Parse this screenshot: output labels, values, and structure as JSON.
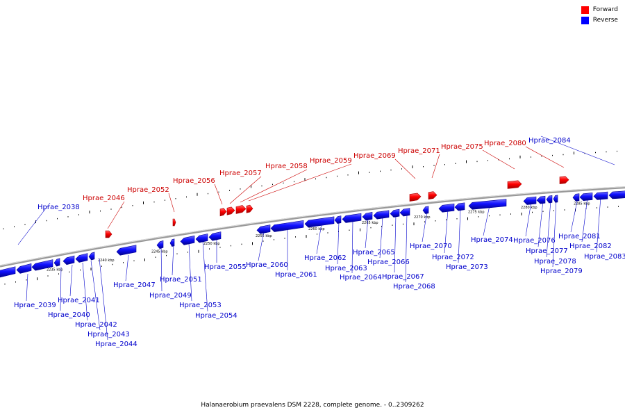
{
  "legend": {
    "items": [
      {
        "label": "Forward",
        "color": "#ff0000"
      },
      {
        "label": "Reverse",
        "color": "#0000ff"
      }
    ]
  },
  "colors": {
    "forward": "#ff0000",
    "forward_dark": "#b00000",
    "reverse": "#0000ff",
    "reverse_dark": "#00009a",
    "forward_text": "#cc0000",
    "reverse_text": "#0000cc",
    "backbone": "#999999"
  },
  "caption": "Halanaerobium praevalens DSM 2228, complete genome. - 0..2309262",
  "scale_labels": [
    "2235 kbp",
    "2240 kbp",
    "2245 kbp",
    "2250 kbp",
    "2255 kbp",
    "2260 kbp",
    "2265 kbp",
    "2270 kbp",
    "2275 kbp",
    "2280 kbp",
    "2285 kbp"
  ],
  "genes": [
    {
      "name": "Hprae_2038",
      "strand": "reverse"
    },
    {
      "name": "Hprae_2039",
      "strand": "reverse"
    },
    {
      "name": "Hprae_2040",
      "strand": "reverse"
    },
    {
      "name": "Hprae_2041",
      "strand": "reverse"
    },
    {
      "name": "Hprae_2042",
      "strand": "reverse"
    },
    {
      "name": "Hprae_2043",
      "strand": "reverse"
    },
    {
      "name": "Hprae_2044",
      "strand": "reverse"
    },
    {
      "name": "Hprae_2046",
      "strand": "forward"
    },
    {
      "name": "Hprae_2047",
      "strand": "reverse"
    },
    {
      "name": "Hprae_2049",
      "strand": "reverse"
    },
    {
      "name": "Hprae_2051",
      "strand": "reverse"
    },
    {
      "name": "Hprae_2052",
      "strand": "forward"
    },
    {
      "name": "Hprae_2053",
      "strand": "reverse"
    },
    {
      "name": "Hprae_2054",
      "strand": "reverse"
    },
    {
      "name": "Hprae_2055",
      "strand": "reverse"
    },
    {
      "name": "Hprae_2056",
      "strand": "forward"
    },
    {
      "name": "Hprae_2057",
      "strand": "forward"
    },
    {
      "name": "Hprae_2058",
      "strand": "forward"
    },
    {
      "name": "Hprae_2059",
      "strand": "forward"
    },
    {
      "name": "Hprae_2060",
      "strand": "reverse"
    },
    {
      "name": "Hprae_2061",
      "strand": "reverse"
    },
    {
      "name": "Hprae_2062",
      "strand": "reverse"
    },
    {
      "name": "Hprae_2063",
      "strand": "reverse"
    },
    {
      "name": "Hprae_2064",
      "strand": "reverse"
    },
    {
      "name": "Hprae_2065",
      "strand": "reverse"
    },
    {
      "name": "Hprae_2066",
      "strand": "reverse"
    },
    {
      "name": "Hprae_2067",
      "strand": "reverse"
    },
    {
      "name": "Hprae_2068",
      "strand": "reverse"
    },
    {
      "name": "Hprae_2069",
      "strand": "forward"
    },
    {
      "name": "Hprae_2070",
      "strand": "reverse"
    },
    {
      "name": "Hprae_2071",
      "strand": "forward"
    },
    {
      "name": "Hprae_2072",
      "strand": "reverse"
    },
    {
      "name": "Hprae_2073",
      "strand": "reverse"
    },
    {
      "name": "Hprae_2074",
      "strand": "reverse"
    },
    {
      "name": "Hprae_2075",
      "strand": "forward"
    },
    {
      "name": "Hprae_2076",
      "strand": "reverse"
    },
    {
      "name": "Hprae_2077",
      "strand": "reverse"
    },
    {
      "name": "Hprae_2078",
      "strand": "reverse"
    },
    {
      "name": "Hprae_2079",
      "strand": "reverse"
    },
    {
      "name": "Hprae_2080",
      "strand": "forward"
    },
    {
      "name": "Hprae_2081",
      "strand": "reverse"
    },
    {
      "name": "Hprae_2082",
      "strand": "reverse"
    },
    {
      "name": "Hprae_2083",
      "strand": "reverse"
    },
    {
      "name": "Hprae_2084",
      "strand": "reverse"
    }
  ]
}
